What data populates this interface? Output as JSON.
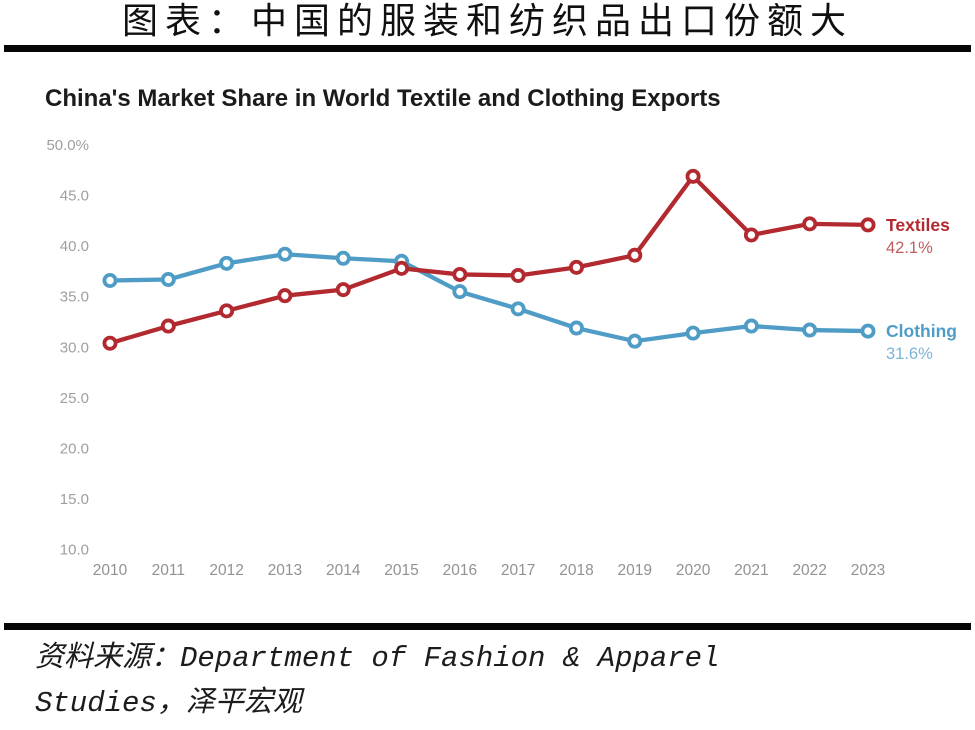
{
  "header": {
    "title": "图表：中国的服装和纺织品出口份额大"
  },
  "chart_data": {
    "type": "line",
    "title": "China's Market Share in World Textile and Clothing Exports",
    "x": [
      "2010",
      "2011",
      "2012",
      "2013",
      "2014",
      "2015",
      "2016",
      "2017",
      "2018",
      "2019",
      "2020",
      "2021",
      "2022",
      "2023"
    ],
    "series": [
      {
        "name": "Textiles",
        "color": "#b2292f",
        "value_color": "#c05d61",
        "end_label": "42.1%",
        "values": [
          30.4,
          32.1,
          33.6,
          35.1,
          35.7,
          37.8,
          37.2,
          37.1,
          37.9,
          39.1,
          46.9,
          41.1,
          42.2,
          42.1
        ]
      },
      {
        "name": "Clothing",
        "color": "#4f9dc6",
        "value_color": "#7cb4d6",
        "end_label": "31.6%",
        "values": [
          36.6,
          36.7,
          38.3,
          39.2,
          38.8,
          38.5,
          35.5,
          33.8,
          31.9,
          30.6,
          31.4,
          32.1,
          31.7,
          31.6
        ]
      }
    ],
    "y_ticks": [
      "50.0%",
      "45.0",
      "40.0",
      "35.0",
      "30.0",
      "25.0",
      "20.0",
      "15.0",
      "10.0"
    ],
    "y_tick_values": [
      50,
      45,
      40,
      35,
      30,
      25,
      20,
      15,
      10
    ],
    "ylim": [
      10,
      50
    ],
    "xlabel": "",
    "ylabel": "",
    "grid": false,
    "legend_position": "right-end",
    "marker": "open-circle"
  },
  "source": {
    "lines": [
      "资料来源：Department of Fashion & Apparel",
      "Studies，泽平宏观"
    ]
  }
}
